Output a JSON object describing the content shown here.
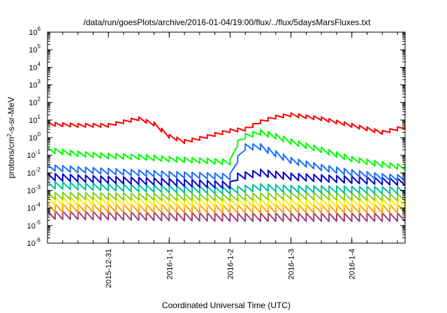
{
  "chart_data": {
    "type": "line",
    "title": "/data/run/goesPlots/archive/2016-01-04/19:00/flux/../flux/5daysMarsFluxes.txt",
    "xlabel": "Coordinated Universal Time (UTC)",
    "ylabel": {
      "base": "protons/cm",
      "sup": "2",
      "rest": "-s-sr-MeV"
    },
    "yscale": "log",
    "ylim": [
      1e-06,
      1000000.0
    ],
    "xlim": [
      "2015-12-30T00:00",
      "2016-01-04T21:00"
    ],
    "grid": false,
    "legend": "none",
    "yticks": [
      {
        "value": 1e-06,
        "base": "10",
        "exp": "-6"
      },
      {
        "value": 1e-05,
        "base": "10",
        "exp": "-5"
      },
      {
        "value": 0.0001,
        "base": "10",
        "exp": "-4"
      },
      {
        "value": 0.001,
        "base": "10",
        "exp": "-3"
      },
      {
        "value": 0.01,
        "base": "10",
        "exp": "-2"
      },
      {
        "value": 0.1,
        "base": "10",
        "exp": "-1"
      },
      {
        "value": 1,
        "base": "10",
        "exp": "0"
      },
      {
        "value": 10,
        "base": "10",
        "exp": "1"
      },
      {
        "value": 100,
        "base": "10",
        "exp": "2"
      },
      {
        "value": 1000,
        "base": "10",
        "exp": "3"
      },
      {
        "value": 10000,
        "base": "10",
        "exp": "4"
      },
      {
        "value": 100000,
        "base": "10",
        "exp": "5"
      },
      {
        "value": 1000000,
        "base": "10",
        "exp": "6"
      }
    ],
    "xticks": [
      {
        "date": "2015-12-31",
        "label": "2015-12-31"
      },
      {
        "date": "2016-01-01",
        "label": "2016-1-1"
      },
      {
        "date": "2016-01-02",
        "label": "2016-1-2"
      },
      {
        "date": "2016-01-03",
        "label": "2016-1-3"
      },
      {
        "date": "2016-01-04",
        "label": "2016-1-4"
      }
    ],
    "sawtooth_period_hours": 3,
    "series": [
      {
        "color": "#ff0000",
        "sawtooth_ratio": 1.6,
        "envelope": [
          [
            "2015-12-30T00:00",
            6
          ],
          [
            "2015-12-30T12:00",
            5
          ],
          [
            "2015-12-31T00:00",
            5
          ],
          [
            "2015-12-31T06:00",
            8
          ],
          [
            "2015-12-31T12:00",
            12
          ],
          [
            "2015-12-31T18:00",
            6
          ],
          [
            "2016-01-01T00:00",
            1.2
          ],
          [
            "2016-01-01T06:00",
            0.6
          ],
          [
            "2016-01-01T12:00",
            0.9
          ],
          [
            "2016-01-01T18:00",
            1.5
          ],
          [
            "2016-01-02T00:00",
            2.5
          ],
          [
            "2016-01-02T06:00",
            3
          ],
          [
            "2016-01-02T12:00",
            8
          ],
          [
            "2016-01-02T18:00",
            15
          ],
          [
            "2016-01-03T00:00",
            20
          ],
          [
            "2016-01-03T12:00",
            12
          ],
          [
            "2016-01-04T00:00",
            5
          ],
          [
            "2016-01-04T12:00",
            2
          ],
          [
            "2016-01-04T21:00",
            4
          ]
        ]
      },
      {
        "color": "#00ff00",
        "sawtooth_ratio": 2.0,
        "envelope": [
          [
            "2015-12-30T00:00",
            0.2
          ],
          [
            "2015-12-30T12:00",
            0.12
          ],
          [
            "2015-12-31T00:00",
            0.09
          ],
          [
            "2015-12-31T12:00",
            0.08
          ],
          [
            "2016-01-01T00:00",
            0.06
          ],
          [
            "2016-01-01T12:00",
            0.05
          ],
          [
            "2016-01-02T00:00",
            0.04
          ],
          [
            "2016-01-02T02:00",
            0.04
          ],
          [
            "2016-01-02T03:00",
            0.5
          ],
          [
            "2016-01-02T06:00",
            1.2
          ],
          [
            "2016-01-02T12:00",
            2
          ],
          [
            "2016-01-02T18:00",
            1.2
          ],
          [
            "2016-01-03T00:00",
            0.6
          ],
          [
            "2016-01-03T12:00",
            0.2
          ],
          [
            "2016-01-04T00:00",
            0.06
          ],
          [
            "2016-01-04T12:00",
            0.03
          ],
          [
            "2016-01-04T21:00",
            0.02
          ]
        ]
      },
      {
        "color": "#1e6fff",
        "sawtooth_ratio": 2.2,
        "envelope": [
          [
            "2015-12-30T00:00",
            0.02
          ],
          [
            "2015-12-30T12:00",
            0.015
          ],
          [
            "2015-12-31T00:00",
            0.012
          ],
          [
            "2015-12-31T12:00",
            0.01
          ],
          [
            "2016-01-01T00:00",
            0.008
          ],
          [
            "2016-01-01T12:00",
            0.007
          ],
          [
            "2016-01-02T00:00",
            0.006
          ],
          [
            "2016-01-02T02:00",
            0.005
          ],
          [
            "2016-01-02T03:00",
            0.06
          ],
          [
            "2016-01-02T06:00",
            0.3
          ],
          [
            "2016-01-02T12:00",
            0.3
          ],
          [
            "2016-01-02T18:00",
            0.12
          ],
          [
            "2016-01-03T00:00",
            0.05
          ],
          [
            "2016-01-03T12:00",
            0.02
          ],
          [
            "2016-01-04T00:00",
            0.01
          ],
          [
            "2016-01-04T12:00",
            0.006
          ],
          [
            "2016-01-04T21:00",
            0.005
          ]
        ]
      },
      {
        "color": "#0000d0",
        "sawtooth_ratio": 2.5,
        "envelope": [
          [
            "2015-12-30T00:00",
            0.006
          ],
          [
            "2015-12-31T00:00",
            0.004
          ],
          [
            "2016-01-01T00:00",
            0.003
          ],
          [
            "2016-01-02T00:00",
            0.002
          ],
          [
            "2016-01-02T03:00",
            0.006
          ],
          [
            "2016-01-02T12:00",
            0.01
          ],
          [
            "2016-01-03T00:00",
            0.006
          ],
          [
            "2016-01-04T00:00",
            0.004
          ],
          [
            "2016-01-04T21:00",
            0.003
          ]
        ]
      },
      {
        "color": "#00c0a0",
        "sawtooth_ratio": 2.5,
        "envelope": [
          [
            "2015-12-30T00:00",
            0.002
          ],
          [
            "2015-12-31T00:00",
            0.0015
          ],
          [
            "2016-01-01T00:00",
            0.0012
          ],
          [
            "2016-01-02T00:00",
            0.001
          ],
          [
            "2016-01-02T12:00",
            0.0015
          ],
          [
            "2016-01-03T00:00",
            0.0012
          ],
          [
            "2016-01-04T21:00",
            0.001
          ]
        ]
      },
      {
        "color": "#80d020",
        "sawtooth_ratio": 2.5,
        "envelope": [
          [
            "2015-12-30T00:00",
            0.0005
          ],
          [
            "2016-01-02T00:00",
            0.0004
          ],
          [
            "2016-01-03T00:00",
            0.0005
          ],
          [
            "2016-01-04T21:00",
            0.0004
          ]
        ]
      },
      {
        "color": "#ffee00",
        "sawtooth_ratio": 3.0,
        "envelope": [
          [
            "2015-12-30T00:00",
            0.00025
          ],
          [
            "2016-01-02T00:00",
            0.0002
          ],
          [
            "2016-01-04T21:00",
            0.0002
          ]
        ]
      },
      {
        "color": "#ffa000",
        "sawtooth_ratio": 3.0,
        "envelope": [
          [
            "2015-12-30T00:00",
            0.0001
          ],
          [
            "2016-01-02T00:00",
            9e-05
          ],
          [
            "2016-01-04T21:00",
            9e-05
          ]
        ]
      },
      {
        "color": "#a04070",
        "sawtooth_ratio": 3.0,
        "envelope": [
          [
            "2015-12-30T00:00",
            4e-05
          ],
          [
            "2016-01-02T00:00",
            3e-05
          ],
          [
            "2016-01-04T21:00",
            3e-05
          ]
        ]
      }
    ]
  }
}
